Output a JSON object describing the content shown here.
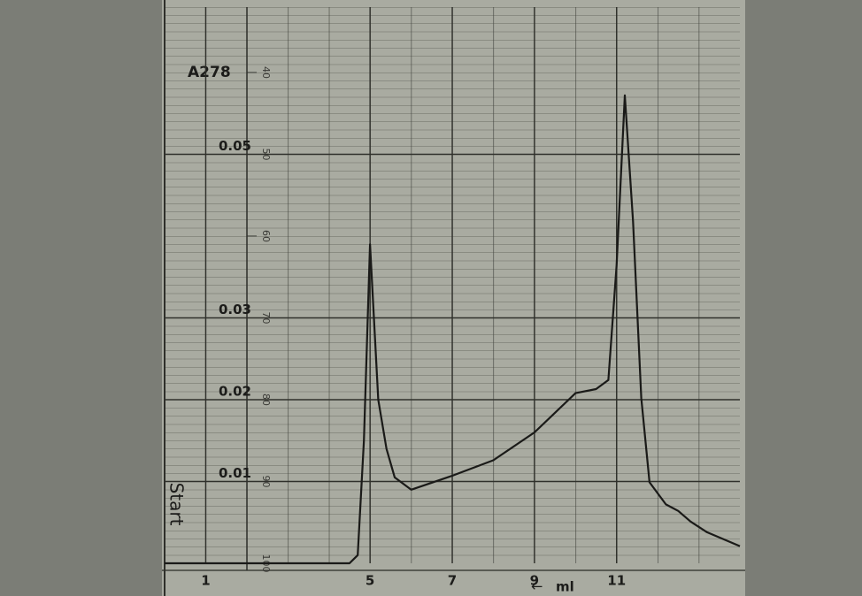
{
  "chart_data": {
    "type": "line",
    "y_label": "A278",
    "x_label": "ml",
    "annotation": "Start",
    "xlim": [
      0,
      14
    ],
    "xticks": [
      1,
      5,
      7,
      9,
      11
    ],
    "ylim": [
      0,
      0.068
    ],
    "yticks": [
      0.01,
      0.02,
      0.03,
      0.05
    ],
    "y2lim": [
      100,
      32
    ],
    "y2ticks": [
      40,
      50,
      60,
      70,
      80,
      90,
      100
    ],
    "grid": true,
    "series": [
      {
        "color": "#1a1a18",
        "x": [
          0,
          4.5,
          4.7,
          4.85,
          5.0,
          5.2,
          5.4,
          5.6,
          6,
          7,
          8,
          9,
          9.5,
          10,
          10.5,
          10.8,
          11.0,
          11.2,
          11.4,
          11.6,
          11.8,
          12.2,
          12.5,
          12.8,
          13.2,
          14
        ],
        "values": [
          0,
          0,
          0.001,
          0.015,
          0.039,
          0.02,
          0.014,
          0.0105,
          0.009,
          0.0107,
          0.0126,
          0.016,
          0.0184,
          0.0208,
          0.0213,
          0.0224,
          0.0364,
          0.0572,
          0.0418,
          0.0202,
          0.0099,
          0.0072,
          0.0064,
          0.0051,
          0.0038,
          0.0021
        ]
      }
    ]
  }
}
